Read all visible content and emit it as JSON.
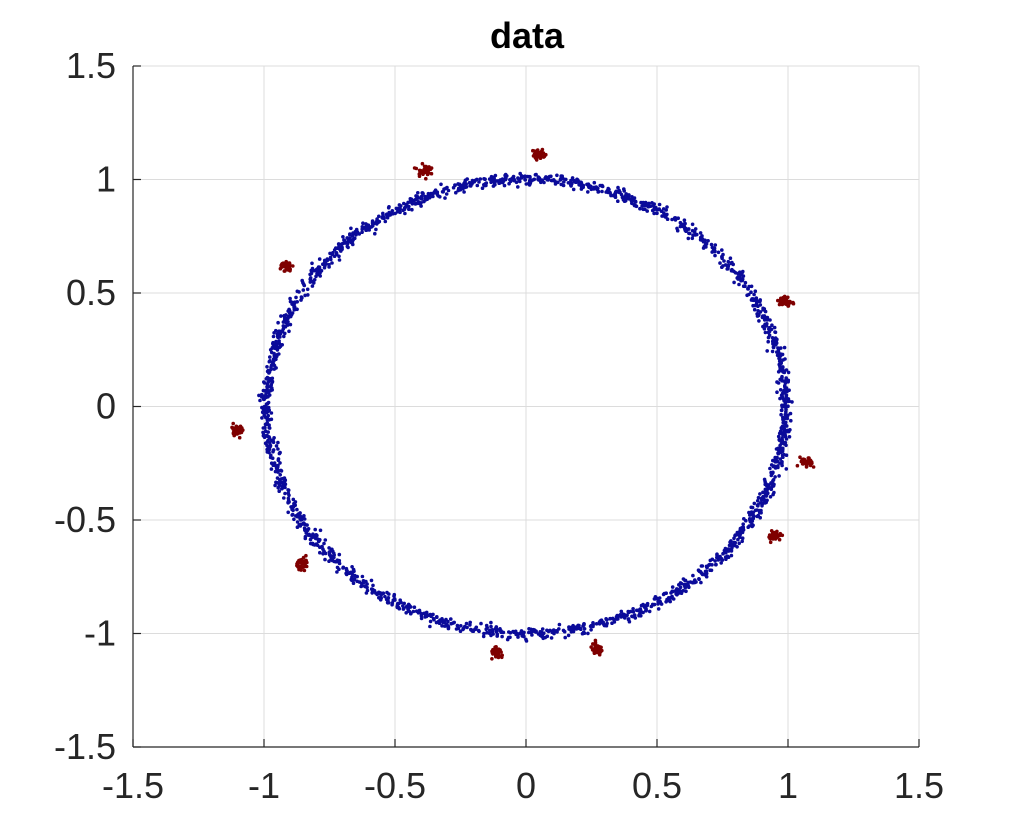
{
  "chart_data": {
    "type": "scatter",
    "title": "data",
    "xlabel": "",
    "ylabel": "",
    "xlim": [
      -1.5,
      1.5
    ],
    "ylim": [
      -1.5,
      1.5
    ],
    "xticks": [
      -1.5,
      -1,
      -0.5,
      0,
      0.5,
      1,
      1.5
    ],
    "yticks": [
      -1.5,
      -1,
      -0.5,
      0,
      0.5,
      1,
      1.5
    ],
    "xtick_labels": [
      "-1.5",
      "-1",
      "-0.5",
      "0",
      "0.5",
      "1",
      "1.5"
    ],
    "ytick_labels": [
      "-1.5",
      "-1",
      "-0.5",
      "0",
      "0.5",
      "1",
      "1.5"
    ],
    "grid": true,
    "series": [
      {
        "color": "#0b0b9a",
        "shape": "ellipse",
        "center": [
          0,
          0
        ],
        "radius_x": 0.99,
        "radius_y": 1.0,
        "spread": 0.012,
        "approx_point_count": 2000
      },
      {
        "color": "#7f0000",
        "shape": "clusters",
        "spread": 0.012,
        "points_per_cluster": 40,
        "cluster_centers": [
          [
            0.05,
            1.11
          ],
          [
            -0.39,
            1.04
          ],
          [
            -0.92,
            0.62
          ],
          [
            0.99,
            0.46
          ],
          [
            -1.1,
            -0.1
          ],
          [
            1.07,
            -0.25
          ],
          [
            0.95,
            -0.57
          ],
          [
            -0.85,
            -0.69
          ],
          [
            -0.11,
            -1.09
          ],
          [
            0.27,
            -1.07
          ]
        ]
      }
    ]
  }
}
